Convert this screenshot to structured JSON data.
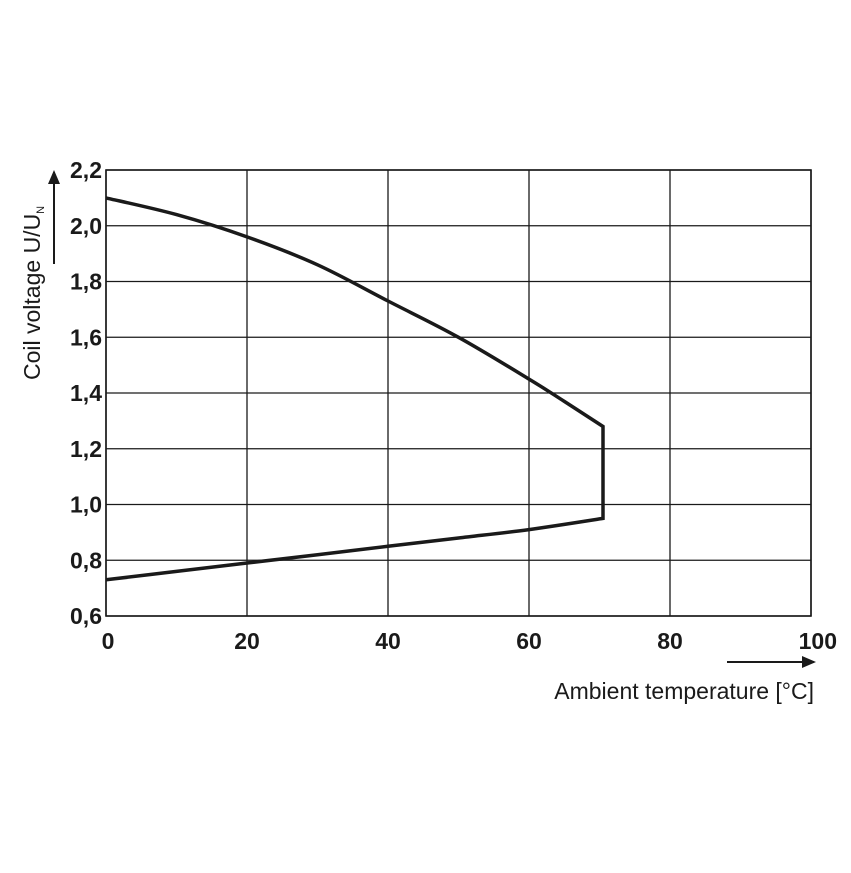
{
  "chart_data": {
    "type": "line",
    "title": "",
    "xlabel": "Ambient temperature [°C]",
    "ylabel": {
      "main": "Coil voltage U/U",
      "subscript": "N"
    },
    "xlim": [
      0,
      100
    ],
    "ylim": [
      0.6,
      2.2
    ],
    "x_ticks": [
      0,
      20,
      40,
      60,
      80,
      100
    ],
    "y_ticks": [
      0.6,
      0.8,
      1.0,
      1.2,
      1.4,
      1.6,
      1.8,
      2.0,
      2.2
    ],
    "x_tick_labels": [
      "0",
      "20",
      "40",
      "60",
      "80",
      "100"
    ],
    "y_tick_labels": [
      "0,6",
      "0,8",
      "1,0",
      "1,2",
      "1,4",
      "1,6",
      "1,8",
      "2,0",
      "2,2"
    ],
    "grid": true,
    "legend": "none",
    "line_color": "#1a1a1a",
    "grid_color": "#1a1a1a",
    "series": [
      {
        "values_xy": [
          [
            0,
            0.73
          ],
          [
            10,
            0.76
          ],
          [
            20,
            0.79
          ],
          [
            30,
            0.82
          ],
          [
            40,
            0.85
          ],
          [
            50,
            0.88
          ],
          [
            60,
            0.91
          ],
          [
            70.5,
            0.95
          ],
          [
            70.5,
            1.28
          ],
          [
            65,
            1.37
          ],
          [
            60,
            1.45
          ],
          [
            50,
            1.6
          ],
          [
            40,
            1.73
          ],
          [
            30,
            1.86
          ],
          [
            20,
            1.96
          ],
          [
            10,
            2.04
          ],
          [
            0,
            2.1
          ]
        ]
      }
    ]
  }
}
